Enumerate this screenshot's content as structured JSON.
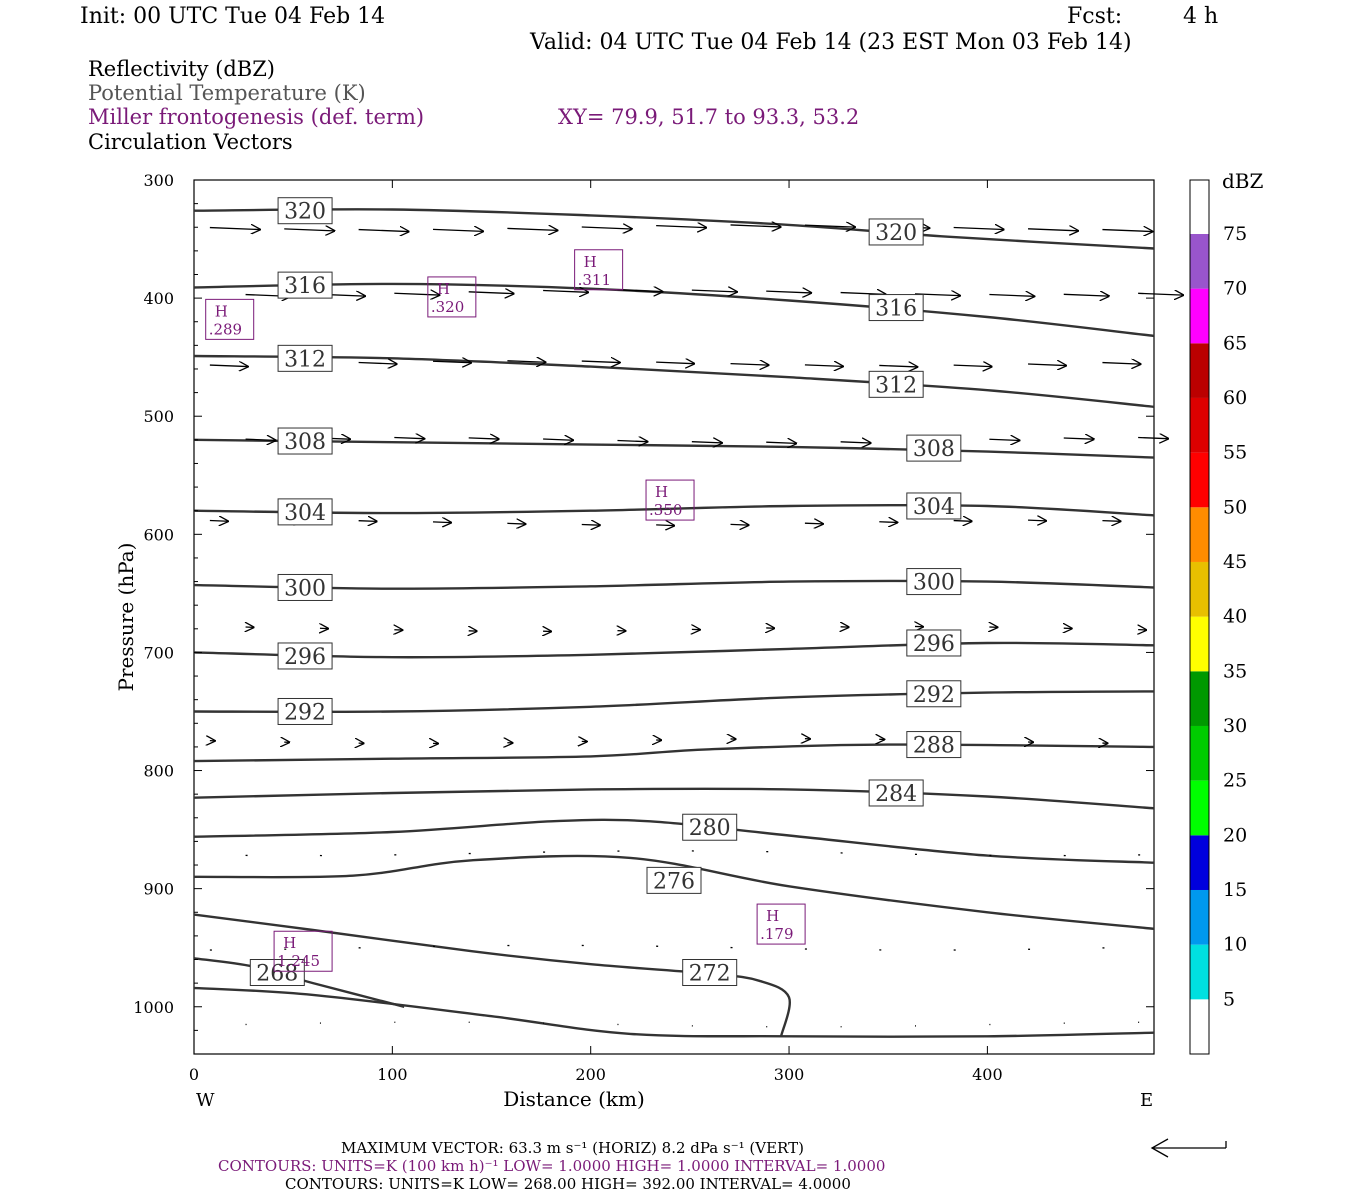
{
  "header": {
    "init": "Init: 00 UTC Tue 04 Feb 14",
    "fcst_label": "Fcst:",
    "fcst_value": "4 h",
    "valid": "Valid: 04 UTC Tue 04 Feb 14 (23 EST Mon 03 Feb 14)"
  },
  "fields": {
    "reflectivity": "Reflectivity (dBZ)",
    "theta": "Potential Temperature (K)",
    "miller": "Miller frontogenesis (def. term)",
    "xy": "XY=  79.9, 51.7 to  93.3, 53.2",
    "vectors": "Circulation Vectors"
  },
  "chart_data": {
    "type": "cross-section",
    "xlabel": "Distance (km)",
    "ylabel": "Pressure (hPa)",
    "xlim": [
      0,
      484
    ],
    "ylim": [
      300,
      1040
    ],
    "y_scale": "linear, inverted",
    "x_ticks": [
      "0",
      "100",
      "200",
      "300",
      "400"
    ],
    "y_ticks": [
      "300",
      "400",
      "500",
      "600",
      "700",
      "800",
      "900",
      "1000"
    ],
    "x_ends": [
      "W",
      "E"
    ],
    "theta_contours": [
      {
        "value": 320,
        "points": [
          [
            0,
            326
          ],
          [
            100,
            325
          ],
          [
            200,
            330
          ],
          [
            300,
            338
          ],
          [
            380,
            348
          ],
          [
            484,
            358
          ]
        ]
      },
      {
        "value": 316,
        "points": [
          [
            0,
            391
          ],
          [
            100,
            388
          ],
          [
            200,
            392
          ],
          [
            300,
            402
          ],
          [
            400,
            416
          ],
          [
            484,
            432
          ]
        ]
      },
      {
        "value": 312,
        "points": [
          [
            0,
            449
          ],
          [
            100,
            451
          ],
          [
            200,
            458
          ],
          [
            300,
            467
          ],
          [
            400,
            478
          ],
          [
            484,
            492
          ]
        ]
      },
      {
        "value": 308,
        "points": [
          [
            0,
            520
          ],
          [
            100,
            522
          ],
          [
            200,
            524
          ],
          [
            300,
            526
          ],
          [
            400,
            530
          ],
          [
            484,
            535
          ]
        ]
      },
      {
        "value": 304,
        "points": [
          [
            0,
            580
          ],
          [
            100,
            582
          ],
          [
            200,
            580
          ],
          [
            300,
            576
          ],
          [
            400,
            576
          ],
          [
            484,
            584
          ]
        ]
      },
      {
        "value": 300,
        "points": [
          [
            0,
            643
          ],
          [
            100,
            646
          ],
          [
            200,
            644
          ],
          [
            300,
            640
          ],
          [
            400,
            640
          ],
          [
            484,
            645
          ]
        ]
      },
      {
        "value": 296,
        "points": [
          [
            0,
            700
          ],
          [
            100,
            704
          ],
          [
            200,
            702
          ],
          [
            300,
            697
          ],
          [
            400,
            692
          ],
          [
            484,
            694
          ]
        ]
      },
      {
        "value": 292,
        "points": [
          [
            0,
            750
          ],
          [
            100,
            750
          ],
          [
            200,
            746
          ],
          [
            300,
            738
          ],
          [
            400,
            734
          ],
          [
            484,
            733
          ]
        ]
      },
      {
        "value": 288,
        "points": [
          [
            0,
            792
          ],
          [
            100,
            790
          ],
          [
            200,
            788
          ],
          [
            260,
            782
          ],
          [
            350,
            778
          ],
          [
            484,
            780
          ]
        ]
      },
      {
        "value": 284,
        "points": [
          [
            0,
            823
          ],
          [
            100,
            819
          ],
          [
            200,
            816
          ],
          [
            300,
            816
          ],
          [
            400,
            822
          ],
          [
            484,
            832
          ]
        ]
      },
      {
        "value": 280,
        "points": [
          [
            0,
            856
          ],
          [
            100,
            852
          ],
          [
            180,
            843
          ],
          [
            230,
            843
          ],
          [
            300,
            855
          ],
          [
            400,
            872
          ],
          [
            484,
            878
          ]
        ]
      },
      {
        "value": 276,
        "points": [
          [
            0,
            890
          ],
          [
            80,
            889
          ],
          [
            140,
            876
          ],
          [
            220,
            874
          ],
          [
            300,
            898
          ],
          [
            400,
            920
          ],
          [
            484,
            934
          ]
        ]
      },
      {
        "value": 272,
        "points": [
          [
            0,
            922
          ],
          [
            60,
            935
          ],
          [
            140,
            953
          ],
          [
            200,
            964
          ],
          [
            260,
            972
          ],
          [
            285,
            978
          ],
          [
            300,
            992
          ],
          [
            296,
            1025
          ]
        ]
      },
      {
        "value": 268,
        "points": [
          [
            0,
            959
          ],
          [
            30,
            966
          ],
          [
            60,
            980
          ],
          [
            106,
            1000
          ]
        ]
      },
      {
        "value": "",
        "points": [
          [
            0,
            984
          ],
          [
            60,
            990
          ],
          [
            150,
            1008
          ],
          [
            220,
            1023
          ],
          [
            300,
            1025
          ],
          [
            400,
            1025
          ],
          [
            484,
            1022
          ]
        ]
      }
    ],
    "theta_labels": [
      {
        "text": "320",
        "x": 56,
        "p": 326
      },
      {
        "text": "320",
        "x": 354,
        "p": 344
      },
      {
        "text": "316",
        "x": 56,
        "p": 389
      },
      {
        "text": "316",
        "x": 354,
        "p": 408
      },
      {
        "text": "312",
        "x": 56,
        "p": 451
      },
      {
        "text": "312",
        "x": 354,
        "p": 473
      },
      {
        "text": "308",
        "x": 56,
        "p": 521
      },
      {
        "text": "308",
        "x": 373,
        "p": 527
      },
      {
        "text": "304",
        "x": 56,
        "p": 581
      },
      {
        "text": "304",
        "x": 373,
        "p": 576
      },
      {
        "text": "300",
        "x": 56,
        "p": 645
      },
      {
        "text": "300",
        "x": 373,
        "p": 640
      },
      {
        "text": "296",
        "x": 56,
        "p": 703
      },
      {
        "text": "296",
        "x": 373,
        "p": 692
      },
      {
        "text": "292",
        "x": 56,
        "p": 750
      },
      {
        "text": "292",
        "x": 373,
        "p": 735
      },
      {
        "text": "288",
        "x": 373,
        "p": 778
      },
      {
        "text": "284",
        "x": 354,
        "p": 819
      },
      {
        "text": "280",
        "x": 260,
        "p": 848
      },
      {
        "text": "276",
        "x": 242,
        "p": 893
      },
      {
        "text": "272",
        "x": 260,
        "p": 971
      },
      {
        "text": "268",
        "x": 42,
        "p": 971
      }
    ],
    "frontogenesis_maxima": [
      {
        "label": "H",
        "value": ".289",
        "x": 18,
        "p": 418
      },
      {
        "label": "H",
        "value": ".320",
        "x": 130,
        "p": 399
      },
      {
        "label": "H",
        "value": ".311",
        "x": 204,
        "p": 376
      },
      {
        "label": "H",
        "value": ".350",
        "x": 240,
        "p": 571
      },
      {
        "label": "H",
        "value": ".179",
        "x": 296,
        "p": 930
      },
      {
        "label": "H",
        "value": "1.245",
        "x": 55,
        "p": 953
      }
    ],
    "vector_rows": [
      {
        "p": 340,
        "len": 50
      },
      {
        "p": 395,
        "len": 45
      },
      {
        "p": 455,
        "len": 38
      },
      {
        "p": 520,
        "len": 30
      },
      {
        "p": 590,
        "len": 18
      },
      {
        "p": 680,
        "len": 8
      },
      {
        "p": 775,
        "len": 5
      },
      {
        "p": 870,
        "len": 2
      },
      {
        "p": 950,
        "len": 2
      },
      {
        "p": 1015,
        "len": 1
      }
    ],
    "colorbar": {
      "unit": "dBZ",
      "levels": [
        "5",
        "10",
        "15",
        "20",
        "25",
        "30",
        "35",
        "40",
        "45",
        "50",
        "55",
        "60",
        "65",
        "70",
        "75"
      ],
      "colors": [
        "#ffffff",
        "#00e0e0",
        "#0099ee",
        "#0000dd",
        "#00ff00",
        "#00cc00",
        "#009900",
        "#ffff00",
        "#e8c000",
        "#ff8c00",
        "#ff0000",
        "#dd0000",
        "#bb0000",
        "#ff00ff",
        "#9955cc",
        "#ffffff"
      ]
    }
  },
  "footer": {
    "vector_line": "MAXIMUM VECTOR:  63.3 m s⁻¹ (HORIZ)           8.2 dPa s⁻¹ (VERT)",
    "contours_purple": "CONTOURS:  UNITS=K (100 km h)⁻¹  LOW=   1.0000       HIGH=   1.0000       INTERVAL=    1.0000",
    "contours_black": "CONTOURS:  UNITS=K  LOW=   268.00        HIGH=   392.00        INTERVAL=    4.0000"
  }
}
